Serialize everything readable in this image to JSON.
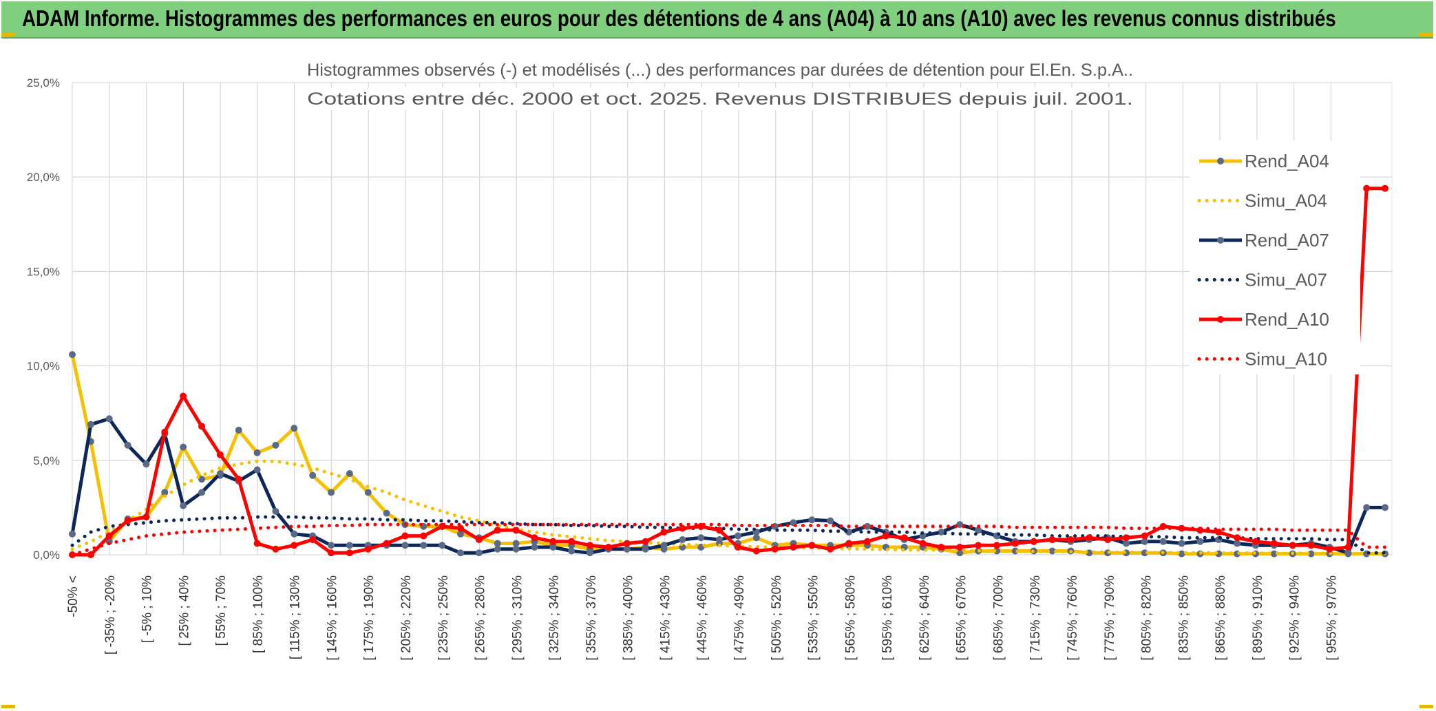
{
  "banner": {
    "title": "ADAM Informe. Histogrammes des performances en euros pour des détentions de 4 ans (A04) à 10 ans (A10) avec les revenus connus distribués"
  },
  "colors": {
    "banner_bg": "#7fcf7f",
    "a04": "#f5c000",
    "a07": "#0c2758",
    "a10": "#ff0000",
    "grid": "#d9d9d9",
    "axis_text": "#595959"
  },
  "chart_data": {
    "type": "line",
    "title": "Histogrammes observés (-) et modélisés (...) des performances par durées de détention pour El.En. S.p.A..",
    "subtitle": "Cotations entre déc. 2000 et oct. 2025. Revenus DISTRIBUES depuis juil. 2001.",
    "xlabel": "",
    "ylabel": "",
    "ylim": [
      0,
      25
    ],
    "y_ticks": [
      "0,0%",
      "5,0%",
      "10,0%",
      "15,0%",
      "20,0%",
      "25,0%"
    ],
    "x_tick_labels": [
      "-50% <",
      "[ -35% ; -20%",
      "[ -5% ; 10%",
      "[ 25% ; 40%",
      "[ 55% ; 70%",
      "[ 85% ; 100%",
      "[ 115% ; 130%",
      "[ 145% ; 160%",
      "[ 175% ; 190%",
      "[ 205% ; 220%",
      "[ 235% ; 250%",
      "[ 265% ; 280%",
      "[ 295% ; 310%",
      "[ 325% ; 340%",
      "[ 355% ; 370%",
      "[ 385% ; 400%",
      "[ 415% ; 430%",
      "[ 445% ; 460%",
      "[ 475% ; 490%",
      "[ 505% ; 520%",
      "[ 535% ; 550%",
      "[ 565% ; 580%",
      "[ 595% ; 610%",
      "[ 625% ; 640%",
      "[ 655% ; 670%",
      "[ 685% ; 700%",
      "[ 715% ; 730%",
      "[ 745% ; 760%",
      "[ 775% ; 790%",
      "[ 805% ; 820%",
      "[ 835% ; 850%",
      "[ 865% ; 880%",
      "[ 895% ; 910%",
      "[ 925% ; 940%",
      "[ 955% ; 970%"
    ],
    "legend_position": "right",
    "series": [
      {
        "name": "Rend_A04",
        "style": "solid",
        "color": "#f5c000",
        "values": [
          10.6,
          6.0,
          0.7,
          1.9,
          2.0,
          3.3,
          5.7,
          4.0,
          4.2,
          6.6,
          5.4,
          5.8,
          6.7,
          4.2,
          3.3,
          4.3,
          3.3,
          2.2,
          1.6,
          1.5,
          1.5,
          1.1,
          0.9,
          0.6,
          0.6,
          0.7,
          0.5,
          0.5,
          0.3,
          0.3,
          0.3,
          0.4,
          0.3,
          0.4,
          0.4,
          0.6,
          0.6,
          0.9,
          0.5,
          0.6,
          0.5,
          0.5,
          0.5,
          0.5,
          0.4,
          0.4,
          0.4,
          0.3,
          0.1,
          0.2,
          0.2,
          0.2,
          0.2,
          0.2,
          0.2,
          0.1,
          0.1,
          0.1,
          0.1,
          0.1,
          0.05,
          0.05,
          0.05,
          0.05,
          0.05,
          0.05,
          0.05,
          0.05,
          0.05,
          0.05,
          0.05,
          0.05
        ]
      },
      {
        "name": "Simu_A04",
        "style": "dotted",
        "color": "#f5c000",
        "values": [
          0.3,
          0.7,
          1.2,
          1.8,
          2.4,
          3.1,
          3.7,
          4.2,
          4.6,
          4.8,
          4.95,
          4.95,
          4.8,
          4.6,
          4.3,
          4.0,
          3.6,
          3.3,
          2.9,
          2.6,
          2.3,
          2.0,
          1.8,
          1.55,
          1.35,
          1.2,
          1.05,
          0.95,
          0.85,
          0.75,
          0.7,
          0.65,
          0.6,
          0.55,
          0.5,
          0.5,
          0.45,
          0.42,
          0.4,
          0.38,
          0.36,
          0.34,
          0.32,
          0.3,
          0.28,
          0.26,
          0.25,
          0.24,
          0.22,
          0.21,
          0.2,
          0.19,
          0.18,
          0.17,
          0.16,
          0.15,
          0.14,
          0.13,
          0.12,
          0.12,
          0.11,
          0.1,
          0.1,
          0.09,
          0.09,
          0.08,
          0.08,
          0.07,
          0.07,
          0.06,
          0.06,
          0.06
        ]
      },
      {
        "name": "Rend_A07",
        "style": "solid",
        "color": "#0c2758",
        "values": [
          1.1,
          6.9,
          7.2,
          5.8,
          4.8,
          6.4,
          2.6,
          3.3,
          4.3,
          3.9,
          4.5,
          2.3,
          1.1,
          1.0,
          0.5,
          0.5,
          0.5,
          0.5,
          0.5,
          0.5,
          0.5,
          0.1,
          0.1,
          0.3,
          0.3,
          0.4,
          0.4,
          0.2,
          0.1,
          0.3,
          0.3,
          0.3,
          0.5,
          0.8,
          0.9,
          0.8,
          1.0,
          1.2,
          1.5,
          1.7,
          1.85,
          1.8,
          1.2,
          1.5,
          1.2,
          0.8,
          1.0,
          1.2,
          1.6,
          1.3,
          1.0,
          0.7,
          0.7,
          0.8,
          0.7,
          0.8,
          0.9,
          0.6,
          0.7,
          0.7,
          0.6,
          0.7,
          0.8,
          0.6,
          0.5,
          0.5,
          0.5,
          0.6,
          0.4,
          0.1,
          2.5,
          2.5
        ]
      },
      {
        "name": "Simu_A07",
        "style": "dotted",
        "color": "#0c2758",
        "values": [
          0.5,
          1.2,
          1.5,
          1.6,
          1.7,
          1.8,
          1.85,
          1.9,
          1.95,
          1.95,
          2.0,
          2.0,
          2.0,
          1.95,
          1.95,
          1.9,
          1.9,
          1.85,
          1.85,
          1.8,
          1.8,
          1.75,
          1.7,
          1.7,
          1.65,
          1.6,
          1.6,
          1.55,
          1.55,
          1.5,
          1.5,
          1.45,
          1.45,
          1.4,
          1.4,
          1.4,
          1.35,
          1.35,
          1.3,
          1.3,
          1.3,
          1.25,
          1.25,
          1.2,
          1.2,
          1.2,
          1.15,
          1.15,
          1.1,
          1.1,
          1.1,
          1.05,
          1.05,
          1.0,
          1.0,
          1.0,
          1.0,
          0.95,
          0.95,
          0.95,
          0.9,
          0.9,
          0.9,
          0.9,
          0.85,
          0.85,
          0.85,
          0.85,
          0.8,
          0.8,
          0.1,
          0.1
        ]
      },
      {
        "name": "Rend_A10",
        "style": "solid",
        "color": "#ff0000",
        "values": [
          0.0,
          0.0,
          1.0,
          1.8,
          2.0,
          6.5,
          8.4,
          6.8,
          5.3,
          4.0,
          0.6,
          0.3,
          0.5,
          0.8,
          0.1,
          0.1,
          0.3,
          0.6,
          1.0,
          1.0,
          1.5,
          1.4,
          0.8,
          1.3,
          1.3,
          0.9,
          0.7,
          0.7,
          0.5,
          0.4,
          0.6,
          0.7,
          1.2,
          1.4,
          1.5,
          1.3,
          0.4,
          0.2,
          0.3,
          0.4,
          0.5,
          0.3,
          0.6,
          0.7,
          1.0,
          0.9,
          0.6,
          0.4,
          0.4,
          0.5,
          0.5,
          0.6,
          0.7,
          0.8,
          0.8,
          0.9,
          0.8,
          0.9,
          1.0,
          1.5,
          1.4,
          1.3,
          1.2,
          0.9,
          0.7,
          0.6,
          0.5,
          0.5,
          0.3,
          0.4,
          19.4,
          19.4
        ]
      },
      {
        "name": "Simu_A10",
        "style": "dotted",
        "color": "#ff0000",
        "values": [
          0.0,
          0.3,
          0.6,
          0.8,
          1.0,
          1.1,
          1.2,
          1.25,
          1.3,
          1.35,
          1.4,
          1.45,
          1.5,
          1.5,
          1.55,
          1.55,
          1.6,
          1.6,
          1.6,
          1.6,
          1.6,
          1.6,
          1.6,
          1.6,
          1.6,
          1.6,
          1.6,
          1.6,
          1.6,
          1.6,
          1.6,
          1.6,
          1.6,
          1.6,
          1.6,
          1.6,
          1.55,
          1.55,
          1.55,
          1.55,
          1.55,
          1.55,
          1.5,
          1.5,
          1.5,
          1.5,
          1.5,
          1.5,
          1.5,
          1.5,
          1.5,
          1.45,
          1.45,
          1.45,
          1.45,
          1.45,
          1.45,
          1.4,
          1.4,
          1.4,
          1.4,
          1.4,
          1.35,
          1.35,
          1.35,
          1.35,
          1.3,
          1.3,
          1.3,
          1.3,
          0.4,
          0.4
        ]
      }
    ]
  }
}
